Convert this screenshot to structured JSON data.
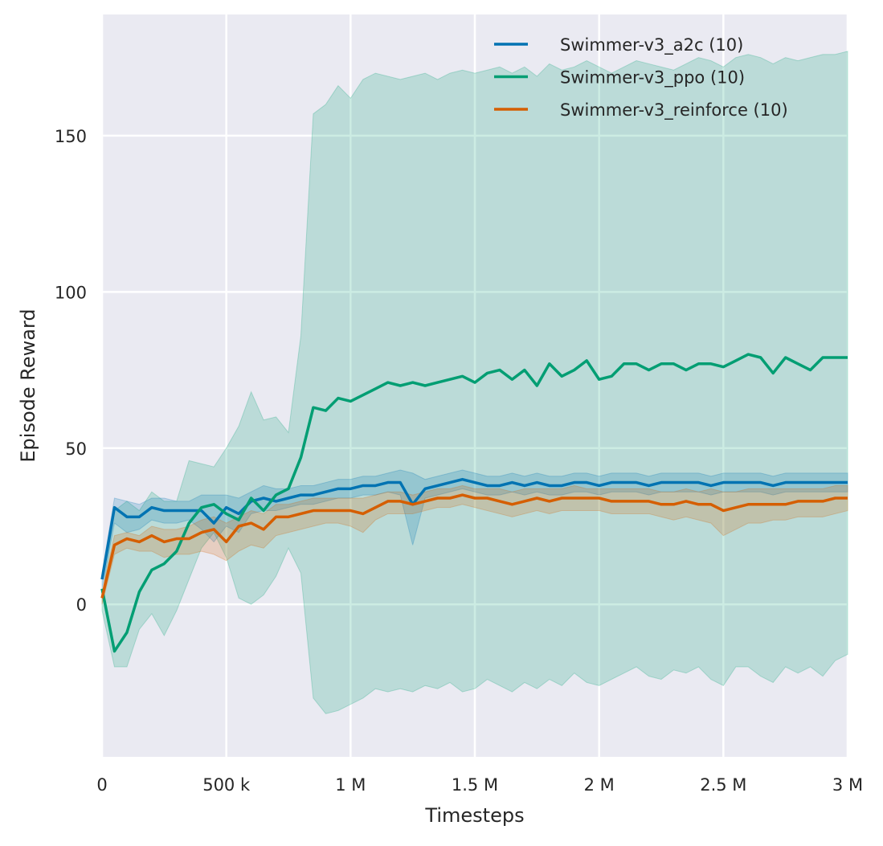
{
  "chart_data": {
    "type": "line",
    "title": "",
    "xlabel": "Timesteps",
    "ylabel": "Episode Reward",
    "xlim": [
      0,
      3000000
    ],
    "ylim": [
      -48.8,
      188.8
    ],
    "grid": true,
    "legend_position": "top-right",
    "x_ticks": [
      0,
      500000,
      1000000,
      1500000,
      2000000,
      2500000,
      3000000
    ],
    "x_tick_labels": [
      "0",
      "500 k",
      "1 M",
      "1.5 M",
      "2 M",
      "2.5 M",
      "3 M"
    ],
    "y_ticks": [
      0,
      50,
      100,
      150
    ],
    "y_tick_labels": [
      "0",
      "50",
      "100",
      "150"
    ],
    "x": [
      0,
      50000,
      100000,
      150000,
      200000,
      250000,
      300000,
      350000,
      400000,
      450000,
      500000,
      550000,
      600000,
      650000,
      700000,
      750000,
      800000,
      850000,
      900000,
      950000,
      1000000,
      1050000,
      1100000,
      1150000,
      1200000,
      1250000,
      1300000,
      1350000,
      1400000,
      1450000,
      1500000,
      1550000,
      1600000,
      1650000,
      1700000,
      1750000,
      1800000,
      1850000,
      1900000,
      1950000,
      2000000,
      2050000,
      2100000,
      2150000,
      2200000,
      2250000,
      2300000,
      2350000,
      2400000,
      2450000,
      2500000,
      2550000,
      2600000,
      2650000,
      2700000,
      2750000,
      2800000,
      2850000,
      2900000,
      2950000,
      3000000
    ],
    "series": [
      {
        "name": "Swimmer-v3_a2c (10)",
        "color": "#0173b2",
        "values": [
          8,
          31,
          28,
          28,
          31,
          30,
          30,
          30,
          30,
          26,
          31,
          29,
          33,
          34,
          33,
          34,
          35,
          35,
          36,
          37,
          37,
          38,
          38,
          39,
          39,
          32,
          37,
          38,
          39,
          40,
          39,
          38,
          38,
          39,
          38,
          39,
          38,
          38,
          39,
          39,
          38,
          39,
          39,
          39,
          38,
          39,
          39,
          39,
          39,
          38,
          39,
          39,
          39,
          39,
          38,
          39,
          39,
          39,
          39,
          39,
          39
        ],
        "upper": [
          10,
          34,
          33,
          32,
          34,
          34,
          33,
          33,
          35,
          35,
          35,
          34,
          36,
          38,
          37,
          37,
          38,
          38,
          39,
          40,
          40,
          41,
          41,
          42,
          43,
          42,
          40,
          41,
          42,
          43,
          42,
          41,
          41,
          42,
          41,
          42,
          41,
          41,
          42,
          42,
          41,
          42,
          42,
          42,
          41,
          42,
          42,
          42,
          42,
          41,
          42,
          42,
          42,
          42,
          41,
          42,
          42,
          42,
          42,
          42,
          42
        ],
        "lower": [
          5,
          26,
          23,
          24,
          27,
          26,
          26,
          27,
          24,
          20,
          25,
          23,
          29,
          30,
          30,
          31,
          32,
          32,
          33,
          34,
          34,
          35,
          35,
          36,
          35,
          19,
          34,
          35,
          36,
          37,
          36,
          35,
          35,
          36,
          35,
          36,
          35,
          35,
          36,
          36,
          35,
          36,
          36,
          36,
          35,
          36,
          36,
          36,
          36,
          35,
          36,
          36,
          36,
          36,
          35,
          36,
          36,
          36,
          36,
          36,
          36
        ]
      },
      {
        "name": "Swimmer-v3_ppo (10)",
        "color": "#029e73",
        "values": [
          5,
          -15,
          -9,
          4,
          11,
          13,
          17,
          26,
          31,
          32,
          29,
          27,
          34,
          30,
          35,
          37,
          47,
          63,
          62,
          66,
          65,
          67,
          69,
          71,
          70,
          71,
          70,
          71,
          72,
          73,
          71,
          74,
          75,
          72,
          75,
          70,
          77,
          73,
          75,
          78,
          72,
          73,
          77,
          77,
          75,
          77,
          77,
          75,
          77,
          77,
          76,
          78,
          80,
          79,
          74,
          79,
          77,
          75,
          79,
          79,
          79
        ],
        "upper": [
          2,
          30,
          33,
          30,
          36,
          33,
          33,
          46,
          45,
          44,
          50,
          57,
          68,
          59,
          60,
          55,
          86,
          157,
          160,
          166,
          162,
          168,
          170,
          169,
          168,
          169,
          170,
          168,
          170,
          171,
          170,
          171,
          172,
          170,
          172,
          169,
          173,
          171,
          172,
          174,
          172,
          170,
          172,
          174,
          173,
          172,
          171,
          173,
          175,
          174,
          172,
          175,
          176,
          175,
          173,
          175,
          174,
          175,
          176,
          176,
          177
        ],
        "lower": [
          -2,
          -20,
          -20,
          -8,
          -3,
          -10,
          -2,
          8,
          18,
          23,
          15,
          2,
          0,
          3,
          9,
          18,
          10,
          -30,
          -35,
          -34,
          -32,
          -30,
          -27,
          -28,
          -27,
          -28,
          -26,
          -27,
          -25,
          -28,
          -27,
          -24,
          -26,
          -28,
          -25,
          -27,
          -24,
          -26,
          -22,
          -25,
          -26,
          -24,
          -22,
          -20,
          -23,
          -24,
          -21,
          -22,
          -20,
          -24,
          -26,
          -20,
          -20,
          -23,
          -25,
          -20,
          -22,
          -20,
          -23,
          -18,
          -16
        ]
      },
      {
        "name": "Swimmer-v3_reinforce (10)",
        "color": "#d55e00",
        "values": [
          2,
          19,
          21,
          20,
          22,
          20,
          21,
          21,
          23,
          24,
          20,
          25,
          26,
          24,
          28,
          28,
          29,
          30,
          30,
          30,
          30,
          29,
          31,
          33,
          33,
          32,
          33,
          34,
          34,
          35,
          34,
          34,
          33,
          32,
          33,
          34,
          33,
          34,
          34,
          34,
          34,
          33,
          33,
          33,
          33,
          32,
          32,
          33,
          32,
          32,
          30,
          31,
          32,
          32,
          32,
          32,
          33,
          33,
          33,
          34,
          34
        ],
        "upper": [
          4,
          22,
          23,
          22,
          25,
          24,
          24,
          25,
          27,
          28,
          26,
          28,
          30,
          29,
          32,
          32,
          33,
          34,
          34,
          34,
          34,
          34,
          35,
          36,
          36,
          35,
          36,
          37,
          37,
          38,
          37,
          37,
          37,
          36,
          37,
          37,
          37,
          37,
          38,
          37,
          37,
          37,
          37,
          37,
          37,
          36,
          36,
          37,
          36,
          37,
          36,
          36,
          37,
          37,
          37,
          37,
          37,
          37,
          37,
          38,
          38
        ],
        "lower": [
          0,
          16,
          18,
          17,
          17,
          15,
          16,
          16,
          17,
          16,
          14,
          17,
          19,
          18,
          22,
          23,
          24,
          25,
          26,
          26,
          25,
          23,
          27,
          29,
          29,
          29,
          30,
          31,
          31,
          32,
          31,
          30,
          29,
          28,
          29,
          30,
          29,
          30,
          30,
          30,
          30,
          29,
          29,
          29,
          29,
          28,
          27,
          28,
          27,
          26,
          22,
          24,
          26,
          26,
          27,
          27,
          28,
          28,
          28,
          29,
          30
        ]
      }
    ]
  }
}
